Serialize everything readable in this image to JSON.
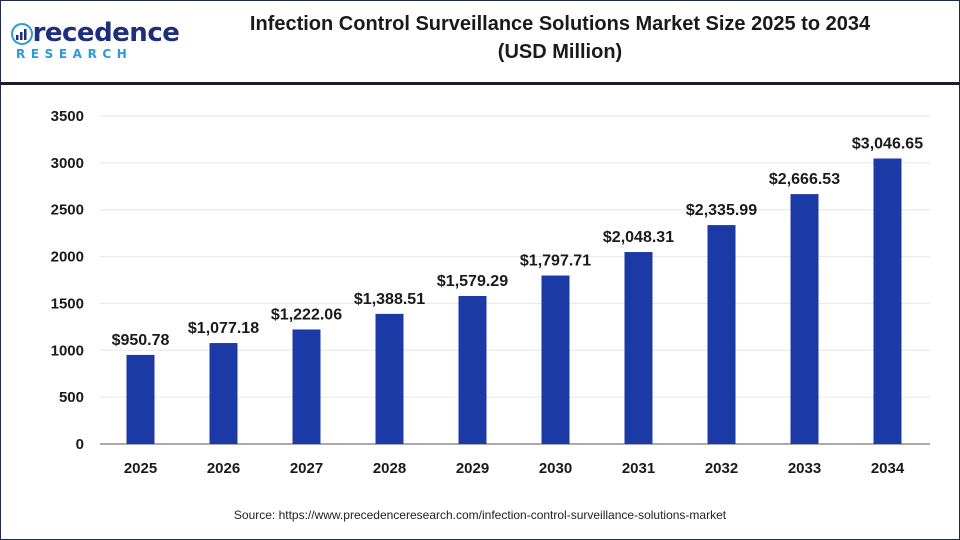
{
  "brand": {
    "name": "Precedence",
    "sub": "RESEARCH",
    "color_primary": "#1d2f7a",
    "color_accent": "#2c9ad6"
  },
  "title_line1": "Infection Control Surveillance Solutions Market Size 2025 to 2034",
  "title_line2": "(USD Million)",
  "source": "Source: https://www.precedenceresearch.com/infection-control-surveillance-solutions-market",
  "chart_data": {
    "type": "bar",
    "categories": [
      "2025",
      "2026",
      "2027",
      "2028",
      "2029",
      "2030",
      "2031",
      "2032",
      "2033",
      "2034"
    ],
    "values": [
      950.78,
      1077.18,
      1222.06,
      1388.51,
      1579.29,
      1797.71,
      2048.31,
      2335.99,
      2666.53,
      3046.65
    ],
    "data_labels": [
      "$950.78",
      "$1,077.18",
      "$1,222.06",
      "$1,388.51",
      "$1,579.29",
      "$1,797.71",
      "$2,048.31",
      "$2,335.99",
      "$2,666.53",
      "$3,046.65"
    ],
    "title": "Infection Control Surveillance Solutions Market Size 2025 to 2034 (USD Million)",
    "xlabel": "",
    "ylabel": "",
    "ylim": [
      0,
      3500
    ],
    "yticks": [
      0,
      500,
      1000,
      1500,
      2000,
      2500,
      3000,
      3500
    ],
    "grid": true,
    "legend": "none",
    "bar_color": "#1b3aa6"
  }
}
